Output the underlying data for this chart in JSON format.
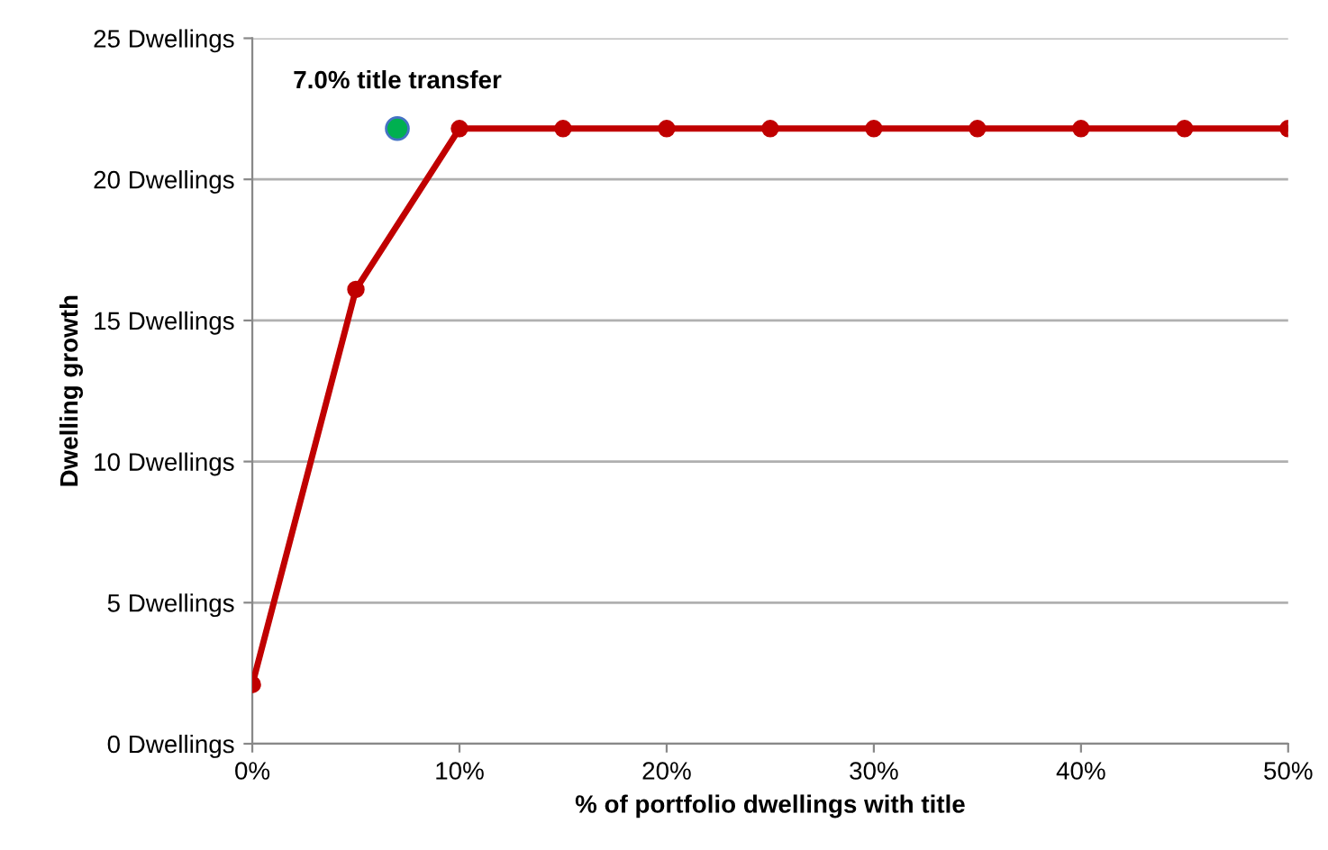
{
  "chart_data": {
    "type": "line",
    "xlabel": "% of portfolio dwellings with title",
    "ylabel": "Dwelling growth",
    "xlim": [
      0,
      50
    ],
    "xticks": [
      {
        "value": 0,
        "label": "0%"
      },
      {
        "value": 10,
        "label": "10%"
      },
      {
        "value": 20,
        "label": "20%"
      },
      {
        "value": 30,
        "label": "30%"
      },
      {
        "value": 40,
        "label": "40%"
      },
      {
        "value": 50,
        "label": "50%"
      }
    ],
    "ylim": [
      0,
      25
    ],
    "yticks": [
      {
        "value": 0,
        "label": "0 Dwellings"
      },
      {
        "value": 5,
        "label": "5 Dwellings"
      },
      {
        "value": 10,
        "label": "10 Dwellings"
      },
      {
        "value": 15,
        "label": "15 Dwellings"
      },
      {
        "value": 20,
        "label": "20 Dwellings"
      },
      {
        "value": 25,
        "label": "25 Dwellings"
      }
    ],
    "grid": "y",
    "marker": "circle",
    "line_style": "solid",
    "legend": false,
    "series": [
      {
        "color": "#c00000",
        "x": [
          0,
          5,
          10,
          15,
          20,
          25,
          30,
          35,
          40,
          45,
          50
        ],
        "values": [
          2.1,
          16.1,
          21.8,
          21.8,
          21.8,
          21.8,
          21.8,
          21.8,
          21.8,
          21.8,
          21.8
        ]
      },
      {
        "type": "scatter",
        "color": "#00b050",
        "x": [
          7
        ],
        "values": [
          21.8
        ]
      }
    ],
    "annotations": [
      {
        "text": "7.0% title transfer",
        "x": 7,
        "y": 21.8
      }
    ]
  }
}
